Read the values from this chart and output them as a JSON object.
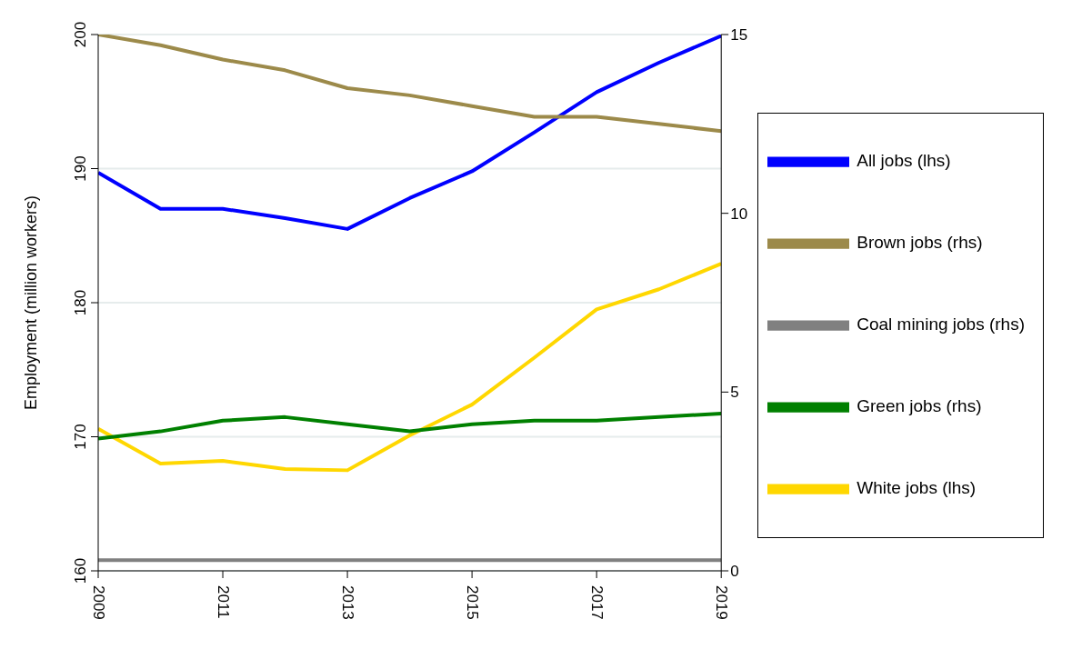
{
  "chart_data": {
    "type": "line",
    "ylabel": "Employment (million workers)",
    "x": [
      2009,
      2010,
      2011,
      2012,
      2013,
      2014,
      2015,
      2016,
      2017,
      2018,
      2019
    ],
    "xlim": [
      2009,
      2019
    ],
    "xticks": [
      2009,
      2011,
      2013,
      2015,
      2017,
      2019
    ],
    "ylim": [
      160,
      200
    ],
    "yticks": [
      160,
      170,
      180,
      190,
      200
    ],
    "y2lim": [
      0,
      15
    ],
    "y2ticks": [
      0,
      5,
      10,
      15
    ],
    "grid": "y",
    "legend": "right",
    "marker": "none",
    "line_style": "solid",
    "series": [
      {
        "name": "All jobs (lhs)",
        "color": "#0000ff",
        "axis": "y",
        "values": [
          189.7,
          187.0,
          187.0,
          186.3,
          185.5,
          187.8,
          189.8,
          192.7,
          195.7,
          197.9,
          199.9
        ]
      },
      {
        "name": "White jobs (lhs)",
        "color": "#ffd700",
        "axis": "y",
        "values": [
          170.6,
          168.0,
          168.2,
          167.6,
          167.5,
          170.1,
          172.4,
          175.9,
          179.5,
          181.0,
          182.9
        ]
      },
      {
        "name": "Green jobs (rhs)",
        "color": "#008000",
        "axis": "y2",
        "values": [
          3.7,
          3.9,
          4.2,
          4.3,
          4.1,
          3.9,
          4.1,
          4.2,
          4.2,
          4.3,
          4.4
        ]
      },
      {
        "name": "Brown jobs (rhs)",
        "color": "#9c8a4a",
        "axis": "y2",
        "values": [
          15.0,
          14.7,
          14.3,
          14.0,
          13.5,
          13.3,
          13.0,
          12.7,
          12.7,
          12.5,
          12.3
        ]
      },
      {
        "name": "Coal mining jobs (rhs)",
        "color": "#808080",
        "axis": "y2",
        "values": [
          0.3,
          0.3,
          0.3,
          0.3,
          0.3,
          0.3,
          0.3,
          0.3,
          0.3,
          0.3,
          0.3
        ]
      }
    ]
  }
}
